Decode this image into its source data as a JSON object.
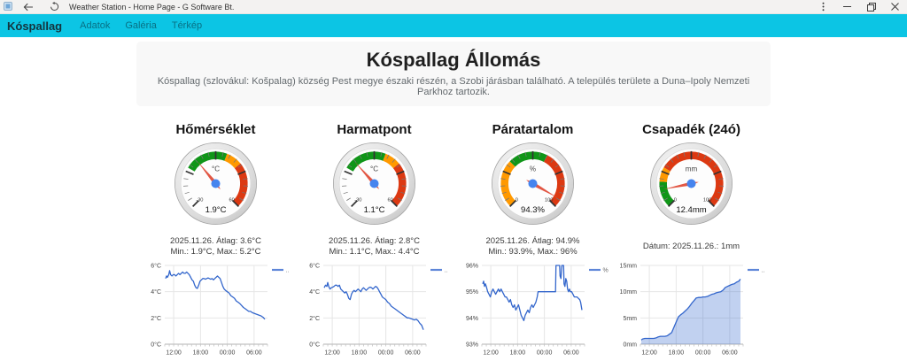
{
  "window": {
    "title": "Weather Station - Home Page - G Software Bt."
  },
  "navbar": {
    "background": "#0cc5e4",
    "brand": "Kóspallag",
    "links": [
      "Adatok",
      "Galéria",
      "Térkép"
    ]
  },
  "header": {
    "title": "Kóspallag Állomás",
    "subtitle": "Kóspallag (szlovákul: Košpalag) község Pest megye északi részén, a Szobi járásban található. A település területe a Duna–Ipoly Nemzeti Parkhoz tartozik."
  },
  "panels": [
    {
      "title": "Hőmérséklet",
      "stats": [
        "2025.11.26. Átlag: 3.6°C",
        "Min.: 1.9°C, Max.: 5.2°C"
      ],
      "gauge": {
        "unit": "°C",
        "value": 1.9,
        "value_label": "1.9°C",
        "min": -30,
        "max": 60,
        "min_label": "-30",
        "max_label": "60",
        "bands": [
          {
            "from": -5,
            "to": 22,
            "color": "#109618"
          },
          {
            "from": 22,
            "to": 32,
            "color": "#FF9900"
          },
          {
            "from": 32,
            "to": 60,
            "color": "#DC3912"
          }
        ]
      }
    },
    {
      "title": "Harmatpont",
      "stats": [
        "2025.11.26. Átlag: 2.8°C",
        "Min.: 1.1°C, Max.: 4.4°C"
      ],
      "gauge": {
        "unit": "°C",
        "value": 1.1,
        "value_label": "1.1°C",
        "min": -30,
        "max": 60,
        "min_label": "-30",
        "max_label": "60",
        "bands": [
          {
            "from": -5,
            "to": 22,
            "color": "#109618"
          },
          {
            "from": 22,
            "to": 32,
            "color": "#FF9900"
          },
          {
            "from": 32,
            "to": 60,
            "color": "#DC3912"
          }
        ]
      }
    },
    {
      "title": "Páratartalom",
      "stats": [
        "2025.11.26. Átlag: 94.9%",
        "Min.: 93.9%, Max.: 96%"
      ],
      "gauge": {
        "unit": "%",
        "value": 94.3,
        "value_label": "94.3%",
        "min": 0,
        "max": 100,
        "min_label": "0",
        "max_label": "100",
        "bands": [
          {
            "from": 0,
            "to": 33,
            "color": "#FF9900"
          },
          {
            "from": 33,
            "to": 60,
            "color": "#109618"
          },
          {
            "from": 60,
            "to": 100,
            "color": "#DC3912"
          }
        ]
      }
    },
    {
      "title": "Csapadék (24ó)",
      "stats": [
        "Dátum: 2025.11.26.: 1mm"
      ],
      "gauge": {
        "unit": "mm",
        "value": 12.4,
        "value_label": "12.4mm",
        "min": 0,
        "max": 100,
        "min_label": "0",
        "max_label": "100",
        "bands": [
          {
            "from": 0,
            "to": 18,
            "color": "#109618"
          },
          {
            "from": 18,
            "to": 28,
            "color": "#FF9900"
          },
          {
            "from": 28,
            "to": 100,
            "color": "#DC3912"
          }
        ]
      }
    }
  ],
  "chart_data": [
    {
      "type": "line",
      "panel": "Hőmérséklet",
      "legend_label": "..",
      "series_color": "#3366cc",
      "x_range": [
        10,
        33
      ],
      "ylim": [
        0,
        6
      ],
      "x_ticks": [
        12,
        18,
        24,
        30
      ],
      "x_tick_labels": [
        "12:00",
        "18:00",
        "00:00",
        "06:00"
      ],
      "y_ticks": [
        0,
        2,
        4,
        6
      ],
      "y_tick_labels": [
        "0°C",
        "2°C",
        "4°C",
        "6°C"
      ],
      "points": [
        [
          10.2,
          5.0
        ],
        [
          10.4,
          5.2
        ],
        [
          10.6,
          5.1
        ],
        [
          10.9,
          5.3
        ],
        [
          11.1,
          5.6
        ],
        [
          11.3,
          5.3
        ],
        [
          11.6,
          5.2
        ],
        [
          11.9,
          5.3
        ],
        [
          12.2,
          5.3
        ],
        [
          12.5,
          5.2
        ],
        [
          12.8,
          5.3
        ],
        [
          13.1,
          5.4
        ],
        [
          13.4,
          5.3
        ],
        [
          13.7,
          5.4
        ],
        [
          14.0,
          5.5
        ],
        [
          14.3,
          5.4
        ],
        [
          14.6,
          5.4
        ],
        [
          14.9,
          5.5
        ],
        [
          15.2,
          5.4
        ],
        [
          15.5,
          5.3
        ],
        [
          15.8,
          5.1
        ],
        [
          16.1,
          4.9
        ],
        [
          16.4,
          4.8
        ],
        [
          16.7,
          4.5
        ],
        [
          17.0,
          4.3
        ],
        [
          17.3,
          4.25
        ],
        [
          17.6,
          4.5
        ],
        [
          17.9,
          4.8
        ],
        [
          18.2,
          4.9
        ],
        [
          18.5,
          5.0
        ],
        [
          18.8,
          5.0
        ],
        [
          19.1,
          4.95
        ],
        [
          19.4,
          5.0
        ],
        [
          19.7,
          5.05
        ],
        [
          20.0,
          5.0
        ],
        [
          20.3,
          4.95
        ],
        [
          20.6,
          5.0
        ],
        [
          20.9,
          4.9
        ],
        [
          21.2,
          5.0
        ],
        [
          21.5,
          5.1
        ],
        [
          21.8,
          5.2
        ],
        [
          22.1,
          5.1
        ],
        [
          22.4,
          5.0
        ],
        [
          22.7,
          4.7
        ],
        [
          23.0,
          4.4
        ],
        [
          23.3,
          4.2
        ],
        [
          23.6,
          4.1
        ],
        [
          24.0,
          4.0
        ],
        [
          24.4,
          3.9
        ],
        [
          24.8,
          3.7
        ],
        [
          25.2,
          3.6
        ],
        [
          25.6,
          3.5
        ],
        [
          26.0,
          3.3
        ],
        [
          26.4,
          3.2
        ],
        [
          26.8,
          3.1
        ],
        [
          27.2,
          2.95
        ],
        [
          27.6,
          2.8
        ],
        [
          28.0,
          2.7
        ],
        [
          28.4,
          2.6
        ],
        [
          28.8,
          2.5
        ],
        [
          29.2,
          2.5
        ],
        [
          29.6,
          2.4
        ],
        [
          30.0,
          2.35
        ],
        [
          30.4,
          2.3
        ],
        [
          30.8,
          2.25
        ],
        [
          31.2,
          2.2
        ],
        [
          31.6,
          2.15
        ],
        [
          32.0,
          2.05
        ],
        [
          32.4,
          1.9
        ]
      ]
    },
    {
      "type": "line",
      "panel": "Harmatpont",
      "legend_label": "..",
      "series_color": "#3366cc",
      "x_range": [
        10,
        33
      ],
      "ylim": [
        0,
        6
      ],
      "x_ticks": [
        12,
        18,
        24,
        30
      ],
      "x_tick_labels": [
        "12:00",
        "18:00",
        "00:00",
        "06:00"
      ],
      "y_ticks": [
        0,
        2,
        4,
        6
      ],
      "y_tick_labels": [
        "0°C",
        "2°C",
        "4°C",
        "6°C"
      ],
      "points": [
        [
          10.2,
          4.3
        ],
        [
          10.5,
          4.5
        ],
        [
          10.8,
          4.4
        ],
        [
          11.0,
          4.7
        ],
        [
          11.2,
          4.4
        ],
        [
          11.5,
          4.2
        ],
        [
          11.8,
          4.3
        ],
        [
          12.1,
          4.35
        ],
        [
          12.4,
          4.4
        ],
        [
          12.7,
          4.5
        ],
        [
          13.0,
          4.5
        ],
        [
          13.3,
          4.4
        ],
        [
          13.6,
          4.5
        ],
        [
          13.9,
          4.2
        ],
        [
          14.2,
          4.1
        ],
        [
          14.5,
          4.0
        ],
        [
          14.8,
          3.9
        ],
        [
          15.1,
          4.0
        ],
        [
          15.4,
          3.8
        ],
        [
          15.7,
          3.5
        ],
        [
          16.0,
          3.4
        ],
        [
          16.3,
          3.8
        ],
        [
          16.6,
          4.0
        ],
        [
          16.9,
          4.1
        ],
        [
          17.2,
          4.0
        ],
        [
          17.5,
          4.1
        ],
        [
          17.8,
          4.2
        ],
        [
          18.1,
          4.1
        ],
        [
          18.4,
          4.0
        ],
        [
          18.7,
          4.2
        ],
        [
          19.0,
          4.3
        ],
        [
          19.3,
          4.2
        ],
        [
          19.6,
          4.1
        ],
        [
          19.9,
          4.2
        ],
        [
          20.2,
          4.3
        ],
        [
          20.5,
          4.35
        ],
        [
          20.8,
          4.3
        ],
        [
          21.1,
          4.2
        ],
        [
          21.4,
          4.3
        ],
        [
          21.7,
          4.4
        ],
        [
          22.0,
          4.35
        ],
        [
          22.3,
          4.2
        ],
        [
          22.6,
          4.0
        ],
        [
          22.9,
          3.8
        ],
        [
          23.2,
          3.6
        ],
        [
          23.6,
          3.5
        ],
        [
          24.0,
          3.4
        ],
        [
          24.4,
          3.2
        ],
        [
          24.8,
          3.1
        ],
        [
          25.2,
          2.9
        ],
        [
          25.6,
          2.8
        ],
        [
          26.0,
          2.7
        ],
        [
          26.4,
          2.6
        ],
        [
          26.8,
          2.5
        ],
        [
          27.2,
          2.4
        ],
        [
          27.6,
          2.3
        ],
        [
          28.0,
          2.2
        ],
        [
          28.4,
          2.1
        ],
        [
          28.8,
          2.0
        ],
        [
          29.2,
          2.0
        ],
        [
          29.6,
          1.95
        ],
        [
          30.0,
          1.9
        ],
        [
          30.4,
          1.85
        ],
        [
          30.8,
          1.9
        ],
        [
          31.2,
          1.8
        ],
        [
          31.6,
          1.6
        ],
        [
          32.0,
          1.45
        ],
        [
          32.4,
          1.1
        ]
      ]
    },
    {
      "type": "line",
      "panel": "Páratartalom",
      "legend_label": "%",
      "series_color": "#3366cc",
      "x_range": [
        10,
        33
      ],
      "ylim": [
        93,
        96
      ],
      "x_ticks": [
        12,
        18,
        24,
        30
      ],
      "x_tick_labels": [
        "12:00",
        "18:00",
        "00:00",
        "06:00"
      ],
      "y_ticks": [
        93,
        94,
        95,
        96
      ],
      "y_tick_labels": [
        "93%",
        "94%",
        "95%",
        "96%"
      ],
      "points": [
        [
          10.2,
          95.3
        ],
        [
          10.4,
          95.4
        ],
        [
          10.6,
          95.2
        ],
        [
          10.8,
          95.3
        ],
        [
          11.0,
          95.2
        ],
        [
          11.3,
          95.0
        ],
        [
          11.6,
          94.9
        ],
        [
          11.9,
          94.8
        ],
        [
          12.2,
          95.0
        ],
        [
          12.5,
          95.1
        ],
        [
          12.8,
          95.0
        ],
        [
          13.1,
          94.9
        ],
        [
          13.4,
          95.0
        ],
        [
          13.7,
          95.1
        ],
        [
          14.0,
          95.0
        ],
        [
          14.3,
          95.1
        ],
        [
          14.6,
          95.0
        ],
        [
          14.9,
          94.9
        ],
        [
          15.2,
          94.8
        ],
        [
          15.5,
          94.8
        ],
        [
          15.8,
          94.7
        ],
        [
          16.1,
          94.6
        ],
        [
          16.4,
          94.7
        ],
        [
          16.7,
          94.5
        ],
        [
          17.0,
          94.4
        ],
        [
          17.3,
          94.5
        ],
        [
          17.6,
          94.3
        ],
        [
          17.9,
          94.4
        ],
        [
          18.2,
          94.5
        ],
        [
          18.5,
          94.3
        ],
        [
          18.8,
          94.1
        ],
        [
          19.1,
          94.0
        ],
        [
          19.4,
          93.9
        ],
        [
          19.7,
          94.1
        ],
        [
          20.0,
          94.2
        ],
        [
          20.3,
          94.3
        ],
        [
          20.6,
          94.2
        ],
        [
          20.9,
          94.4
        ],
        [
          21.2,
          94.5
        ],
        [
          21.5,
          94.4
        ],
        [
          21.8,
          94.5
        ],
        [
          22.1,
          94.6
        ],
        [
          22.4,
          94.8
        ],
        [
          22.6,
          95.0
        ],
        [
          23.5,
          95.0
        ],
        [
          24.5,
          95.0
        ],
        [
          25.5,
          95.0
        ],
        [
          26.5,
          95.0
        ],
        [
          26.6,
          96.0
        ],
        [
          27.4,
          96.0
        ],
        [
          27.5,
          95.6
        ],
        [
          27.7,
          95.5
        ],
        [
          27.9,
          96.0
        ],
        [
          28.3,
          96.0
        ],
        [
          28.4,
          95.3
        ],
        [
          28.6,
          95.2
        ],
        [
          28.8,
          95.5
        ],
        [
          29.0,
          95.4
        ],
        [
          29.2,
          95.1
        ],
        [
          29.4,
          95.0
        ],
        [
          29.6,
          95.1
        ],
        [
          29.8,
          95.0
        ],
        [
          30.1,
          95.0
        ],
        [
          30.4,
          94.9
        ],
        [
          30.7,
          94.8
        ],
        [
          31.0,
          94.8
        ],
        [
          31.3,
          94.8
        ],
        [
          31.6,
          94.75
        ],
        [
          31.9,
          94.7
        ],
        [
          32.1,
          94.6
        ],
        [
          32.4,
          94.3
        ]
      ]
    },
    {
      "type": "area",
      "panel": "Csapadék (24ó)",
      "legend_label": "..",
      "series_color": "#3366cc",
      "x_range": [
        10,
        33
      ],
      "ylim": [
        0,
        15
      ],
      "x_ticks": [
        12,
        18,
        24,
        30
      ],
      "x_tick_labels": [
        "12:00",
        "18:00",
        "00:00",
        "06:00"
      ],
      "y_ticks": [
        0,
        5,
        10,
        15
      ],
      "y_tick_labels": [
        "0mm",
        "5mm",
        "10mm",
        "15mm"
      ],
      "points": [
        [
          10.2,
          0.8
        ],
        [
          10.5,
          1.0
        ],
        [
          11.0,
          1.1
        ],
        [
          11.5,
          1.1
        ],
        [
          12.0,
          1.1
        ],
        [
          12.5,
          1.1
        ],
        [
          13.0,
          1.1
        ],
        [
          13.5,
          1.2
        ],
        [
          14.0,
          1.4
        ],
        [
          14.5,
          1.5
        ],
        [
          15.0,
          1.5
        ],
        [
          15.5,
          1.5
        ],
        [
          16.0,
          1.6
        ],
        [
          16.5,
          1.9
        ],
        [
          17.0,
          2.2
        ],
        [
          17.5,
          3.2
        ],
        [
          18.0,
          4.2
        ],
        [
          18.5,
          5.2
        ],
        [
          19.0,
          5.6
        ],
        [
          19.5,
          5.9
        ],
        [
          20.0,
          6.3
        ],
        [
          20.5,
          6.7
        ],
        [
          21.0,
          7.2
        ],
        [
          21.5,
          7.8
        ],
        [
          22.0,
          8.3
        ],
        [
          22.5,
          8.8
        ],
        [
          23.0,
          8.9
        ],
        [
          23.5,
          8.9
        ],
        [
          24.0,
          9.0
        ],
        [
          24.5,
          9.0
        ],
        [
          25.0,
          9.1
        ],
        [
          25.5,
          9.3
        ],
        [
          26.0,
          9.5
        ],
        [
          26.5,
          9.6
        ],
        [
          27.0,
          9.8
        ],
        [
          27.5,
          9.9
        ],
        [
          28.0,
          10.0
        ],
        [
          28.5,
          10.3
        ],
        [
          29.0,
          10.8
        ],
        [
          29.5,
          11.0
        ],
        [
          30.0,
          11.2
        ],
        [
          30.5,
          11.4
        ],
        [
          31.0,
          11.5
        ],
        [
          31.5,
          11.8
        ],
        [
          32.0,
          12.0
        ],
        [
          32.4,
          12.4
        ]
      ]
    }
  ]
}
